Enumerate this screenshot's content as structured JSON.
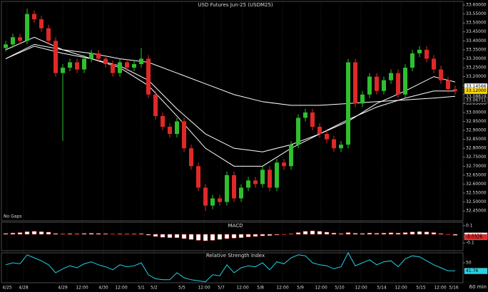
{
  "chart_data": [
    {
      "type": "candlestick",
      "title": "USD Futures Jun-25 (USDM25)",
      "note": "No Gaps",
      "timeframe": "60 min",
      "up_color": "#2fbf2f",
      "down_color": "#e02828",
      "candles": [
        [
          33.36,
          33.4,
          33.34,
          33.38
        ],
        [
          33.38,
          33.44,
          33.36,
          33.42
        ],
        [
          33.42,
          33.44,
          33.38,
          33.4
        ],
        [
          33.4,
          33.58,
          33.38,
          33.55
        ],
        [
          33.55,
          33.57,
          33.5,
          33.52
        ],
        [
          33.52,
          33.54,
          33.45,
          33.47
        ],
        [
          33.47,
          33.49,
          33.38,
          33.4
        ],
        [
          33.4,
          33.42,
          33.2,
          33.22
        ],
        [
          33.22,
          33.27,
          32.84,
          33.25
        ],
        [
          33.25,
          33.3,
          33.23,
          33.28
        ],
        [
          33.28,
          33.3,
          33.22,
          33.24
        ],
        [
          33.24,
          33.32,
          33.22,
          33.3
        ],
        [
          33.3,
          33.35,
          33.28,
          33.33
        ],
        [
          33.33,
          33.35,
          33.28,
          33.3
        ],
        [
          33.3,
          33.32,
          33.25,
          33.27
        ],
        [
          33.27,
          33.29,
          33.2,
          33.22
        ],
        [
          33.22,
          33.3,
          33.2,
          33.28
        ],
        [
          33.28,
          33.3,
          33.23,
          33.25
        ],
        [
          33.25,
          33.29,
          33.23,
          33.27
        ],
        [
          33.27,
          33.36,
          33.25,
          33.3
        ],
        [
          33.3,
          33.32,
          33.08,
          33.1
        ],
        [
          33.1,
          33.12,
          32.96,
          32.98
        ],
        [
          32.98,
          33.0,
          32.9,
          32.92
        ],
        [
          32.92,
          32.94,
          32.86,
          32.88
        ],
        [
          32.88,
          32.97,
          32.86,
          32.95
        ],
        [
          32.95,
          32.97,
          32.78,
          32.8
        ],
        [
          32.8,
          32.82,
          32.68,
          32.7
        ],
        [
          32.7,
          32.72,
          32.56,
          32.58
        ],
        [
          32.58,
          32.6,
          32.45,
          32.48
        ],
        [
          32.48,
          32.54,
          32.46,
          32.52
        ],
        [
          32.52,
          32.54,
          32.48,
          32.5
        ],
        [
          32.5,
          32.67,
          32.48,
          32.65
        ],
        [
          32.65,
          32.67,
          32.5,
          32.52
        ],
        [
          32.52,
          32.6,
          32.5,
          32.58
        ],
        [
          32.58,
          32.64,
          32.56,
          32.62
        ],
        [
          32.62,
          32.64,
          32.58,
          32.6
        ],
        [
          32.6,
          32.7,
          32.58,
          32.68
        ],
        [
          32.68,
          32.7,
          32.56,
          32.58
        ],
        [
          32.58,
          32.74,
          32.56,
          32.72
        ],
        [
          32.72,
          32.74,
          32.68,
          32.7
        ],
        [
          32.7,
          32.84,
          32.68,
          32.82
        ],
        [
          32.82,
          32.99,
          32.8,
          32.97
        ],
        [
          32.97,
          33.02,
          32.95,
          33.0
        ],
        [
          33.0,
          33.02,
          32.9,
          32.92
        ],
        [
          32.92,
          32.94,
          32.86,
          32.88
        ],
        [
          32.88,
          32.9,
          32.83,
          32.85
        ],
        [
          32.85,
          32.87,
          32.78,
          32.8
        ],
        [
          32.8,
          32.84,
          32.78,
          32.82
        ],
        [
          32.82,
          33.3,
          32.8,
          33.28
        ],
        [
          33.28,
          33.3,
          33.03,
          33.05
        ],
        [
          33.05,
          33.12,
          33.03,
          33.1
        ],
        [
          33.1,
          33.22,
          33.08,
          33.2
        ],
        [
          33.2,
          33.22,
          33.1,
          33.12
        ],
        [
          33.12,
          33.2,
          33.1,
          33.18
        ],
        [
          33.18,
          33.24,
          33.16,
          33.22
        ],
        [
          33.22,
          33.24,
          33.08,
          33.1
        ],
        [
          33.1,
          33.27,
          33.08,
          33.25
        ],
        [
          33.25,
          33.35,
          33.23,
          33.33
        ],
        [
          33.33,
          33.37,
          33.31,
          33.35
        ],
        [
          33.35,
          33.37,
          33.28,
          33.3
        ],
        [
          33.3,
          33.32,
          33.22,
          33.24
        ],
        [
          33.24,
          33.26,
          33.16,
          33.18
        ],
        [
          33.18,
          33.2,
          33.11,
          33.13
        ],
        [
          33.13,
          33.15,
          33.1,
          33.12
        ]
      ],
      "overlays": [
        {
          "color": "#ffffff",
          "x": [
            0,
            4,
            8,
            12,
            16,
            20,
            24,
            28,
            32,
            36,
            40,
            44,
            48,
            52,
            56,
            60,
            63
          ],
          "values": [
            33.35,
            33.42,
            33.35,
            33.3,
            33.25,
            33.15,
            32.98,
            32.8,
            32.7,
            32.7,
            32.8,
            32.88,
            32.95,
            33.05,
            33.12,
            33.2,
            33.17
          ]
        },
        {
          "color": "#ffffff",
          "x": [
            0,
            4,
            8,
            12,
            16,
            20,
            24,
            28,
            32,
            36,
            40,
            44,
            48,
            52,
            56,
            60,
            63
          ],
          "values": [
            33.3,
            33.37,
            33.33,
            33.3,
            33.26,
            33.18,
            33.02,
            32.88,
            32.8,
            32.78,
            32.82,
            32.88,
            32.96,
            33.03,
            33.08,
            33.12,
            33.12
          ]
        },
        {
          "color": "#ffffff",
          "x": [
            0,
            4,
            8,
            12,
            16,
            20,
            24,
            28,
            32,
            36,
            40,
            44,
            48,
            52,
            56,
            60,
            63
          ],
          "values": [
            33.3,
            33.38,
            33.35,
            33.33,
            33.3,
            33.28,
            33.22,
            33.16,
            33.1,
            33.06,
            33.04,
            33.04,
            33.05,
            33.06,
            33.07,
            33.08,
            33.09
          ]
        }
      ],
      "ylim": [
        32.395,
        33.62
      ],
      "yticks": [
        {
          "value": 32.45,
          "label": "32.45000"
        },
        {
          "value": 32.5,
          "label": "32.50000"
        },
        {
          "value": 32.55,
          "label": "32.55000"
        },
        {
          "value": 32.6,
          "label": "32.60000"
        },
        {
          "value": 32.65,
          "label": "32.65000"
        },
        {
          "value": 32.7,
          "label": "32.70000"
        },
        {
          "value": 32.75,
          "label": "32.75000"
        },
        {
          "value": 32.8,
          "label": "32.80000"
        },
        {
          "value": 32.85,
          "label": "32.85000"
        },
        {
          "value": 32.9,
          "label": "32.90000"
        },
        {
          "value": 32.95,
          "label": "32.95000"
        },
        {
          "value": 33.0,
          "label": "33.00000"
        },
        {
          "value": 33.05,
          "label": "33.05000"
        },
        {
          "value": 33.1,
          "label": "33.10000"
        },
        {
          "value": 33.15,
          "label": "33.15000"
        },
        {
          "value": 33.2,
          "label": "33.20000"
        },
        {
          "value": 33.25,
          "label": "33.25000"
        },
        {
          "value": 33.3,
          "label": "33.30000"
        },
        {
          "value": 33.35,
          "label": "33.35000"
        },
        {
          "value": 33.4,
          "label": "33.40000"
        },
        {
          "value": 33.45,
          "label": "33.45000"
        },
        {
          "value": 33.5,
          "label": "33.50000"
        },
        {
          "value": 33.55,
          "label": "33.55000"
        },
        {
          "value": 33.6,
          "label": "33.60000"
        }
      ],
      "tags": [
        {
          "value": 33.14566,
          "label": "33.14566",
          "color": "#ffffff"
        },
        {
          "value": 33.12,
          "label": "33.12000",
          "color": "#ffd700"
        },
        {
          "value": 33.08819,
          "label": "33.08819",
          "color": "#000000"
        },
        {
          "value": 33.06711,
          "label": "33.06711",
          "color": "#000000"
        }
      ],
      "xticks": [
        {
          "value": 0.2,
          "label": "4/25"
        },
        {
          "value": 2.5,
          "label": "4/28"
        },
        {
          "value": 8,
          "label": "4/29"
        },
        {
          "value": 10.7,
          "label": "12:00"
        },
        {
          "value": 13.7,
          "label": "4/30"
        },
        {
          "value": 16.2,
          "label": "12:00"
        },
        {
          "value": 19,
          "label": "5/1"
        },
        {
          "value": 20.8,
          "label": "5/2"
        },
        {
          "value": 24.7,
          "label": "5/5"
        },
        {
          "value": 27.8,
          "label": "12:00"
        },
        {
          "value": 30.2,
          "label": "5/7"
        },
        {
          "value": 33.2,
          "label": "12:00"
        },
        {
          "value": 35.7,
          "label": "5/8"
        },
        {
          "value": 38.8,
          "label": "12:00"
        },
        {
          "value": 41.3,
          "label": "5/9"
        },
        {
          "value": 44.2,
          "label": "12:00"
        },
        {
          "value": 46.8,
          "label": "5/10"
        },
        {
          "value": 49.8,
          "label": "12:00"
        },
        {
          "value": 52.7,
          "label": "5/14"
        },
        {
          "value": 55.4,
          "label": "12:00"
        },
        {
          "value": 58.2,
          "label": "5/15"
        },
        {
          "value": 60.9,
          "label": "12:00"
        },
        {
          "value": 62.8,
          "label": "5/16"
        }
      ]
    },
    {
      "type": "bar",
      "title": "MACD",
      "color": "#ffffff",
      "edge_color": "#e02828",
      "values": [
        0.01,
        0.015,
        0.02,
        0.03,
        0.035,
        0.03,
        0.025,
        0.01,
        0.005,
        0.008,
        0.006,
        0.01,
        0.012,
        0.01,
        0.008,
        0.004,
        0.006,
        0.005,
        0.006,
        0.008,
        -0.01,
        -0.025,
        -0.035,
        -0.04,
        -0.04,
        -0.05,
        -0.06,
        -0.07,
        -0.075,
        -0.07,
        -0.06,
        -0.05,
        -0.045,
        -0.04,
        -0.03,
        -0.025,
        -0.018,
        -0.015,
        -0.008,
        -0.004,
        0.005,
        0.02,
        0.035,
        0.04,
        0.035,
        0.025,
        0.015,
        0.008,
        0.02,
        0.012,
        0.01,
        0.015,
        0.012,
        0.014,
        0.018,
        0.014,
        0.02,
        0.028,
        0.032,
        0.028,
        0.02,
        0.008,
        -0.004,
        -0.012
      ],
      "ylim": [
        -0.19,
        0.14
      ],
      "yticks": [
        0.1,
        -0.1
      ],
      "tags": [
        {
          "value": -0.0152,
          "label": "-0.0152",
          "color": "#ffffff"
        },
        {
          "value": -0.0326,
          "label": "-0.0326",
          "color": "#e02828"
        }
      ]
    },
    {
      "type": "line",
      "title": "Relative Strength Index",
      "color": "#22d3e6",
      "values": [
        48,
        50,
        49,
        58,
        55,
        52,
        48,
        40,
        44,
        47,
        45,
        49,
        51,
        48,
        46,
        43,
        48,
        46,
        47,
        50,
        38,
        34,
        33,
        33,
        40,
        35,
        33,
        32,
        31,
        38,
        37,
        48,
        40,
        45,
        47,
        46,
        50,
        43,
        51,
        49,
        55,
        58,
        57,
        50,
        48,
        47,
        44,
        46,
        60,
        47,
        50,
        53,
        48,
        51,
        52,
        46,
        54,
        57,
        56,
        52,
        48,
        45,
        42,
        42
      ],
      "ylim": [
        30,
        60
      ],
      "yticks": [
        50
      ],
      "tags": [
        {
          "value": 41.76,
          "label": "41.76",
          "color": "#22d3e6"
        }
      ]
    }
  ]
}
